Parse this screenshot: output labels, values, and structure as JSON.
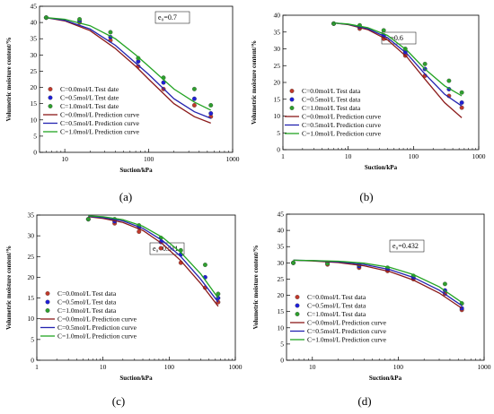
{
  "colors": {
    "c0": "#c0392b",
    "c05": "#1f1fd6",
    "c1": "#2e9e2e",
    "c0_line": "#8b1a1a",
    "c05_line": "#2323b0",
    "c1_line": "#23a323"
  },
  "chart_data": [
    {
      "type": "scatter",
      "panel_label": "(a)",
      "annotation": "e₀=0.7",
      "xlabel": "Suction/kPa",
      "ylabel": "Volumetric moisture content/%",
      "xscale": "log",
      "xlim": [
        5,
        1000
      ],
      "ylim": [
        0,
        45
      ],
      "x_ticks": [
        "10",
        "100",
        "1000"
      ],
      "y_ticks": [
        "0",
        "5",
        "10",
        "15",
        "20",
        "25",
        "30",
        "35",
        "40",
        "45"
      ],
      "legend_position": "left",
      "series": [
        {
          "name": "C=0.0mol/L Test date",
          "kind": "points",
          "x": [
            6,
            15,
            35,
            75,
            150,
            350,
            550
          ],
          "y": [
            41.5,
            40,
            34.5,
            26.5,
            19.5,
            14.5,
            11
          ]
        },
        {
          "name": "C=0.5mol/L Test date",
          "kind": "points",
          "x": [
            6,
            15,
            35,
            75,
            150,
            350,
            550
          ],
          "y": [
            41.5,
            40.5,
            35.5,
            28,
            21.5,
            16.5,
            12
          ]
        },
        {
          "name": "C=1.0mol/L Test date",
          "kind": "points",
          "x": [
            6,
            15,
            35,
            75,
            150,
            350,
            550
          ],
          "y": [
            41.5,
            41,
            37,
            29,
            23,
            19.5,
            14.5
          ]
        },
        {
          "name": "C=0.0mol/L Prediction curve",
          "kind": "line",
          "x": [
            6,
            10,
            20,
            40,
            70,
            100,
            200,
            350,
            550
          ],
          "y": [
            41.5,
            40.5,
            37.5,
            32,
            26.5,
            22.5,
            15,
            11,
            9
          ]
        },
        {
          "name": "C=0.5mol/L Prediction curve",
          "kind": "line",
          "x": [
            6,
            10,
            20,
            40,
            70,
            100,
            200,
            350,
            550
          ],
          "y": [
            41.5,
            40.7,
            38,
            33,
            27.5,
            24,
            16.5,
            12.5,
            10.5
          ]
        },
        {
          "name": "C=1.0mol/L Prediction curve",
          "kind": "line",
          "x": [
            6,
            10,
            20,
            40,
            70,
            100,
            200,
            350,
            550
          ],
          "y": [
            41.5,
            41,
            39,
            35,
            30,
            26.5,
            19.5,
            15.5,
            13
          ]
        }
      ]
    },
    {
      "type": "scatter",
      "panel_label": "(b)",
      "annotation": "e₀=0.6",
      "xlabel": "Suction/kPa",
      "ylabel": "Volumetric moisture content/%",
      "xscale": "log",
      "xlim": [
        1,
        1000
      ],
      "ylim": [
        0,
        40
      ],
      "x_ticks": [
        "1",
        "10",
        "100",
        "1000"
      ],
      "y_ticks": [
        "0",
        "5",
        "10",
        "15",
        "20",
        "25",
        "30",
        "35",
        "40"
      ],
      "legend_position": "bottom-left",
      "series": [
        {
          "name": "C=0.0mol/L Test data",
          "kind": "points",
          "x": [
            6,
            15,
            35,
            75,
            150,
            350,
            550
          ],
          "y": [
            37.5,
            36,
            33,
            28,
            22,
            16,
            12.5
          ]
        },
        {
          "name": "C=0.5mol/L Test data",
          "kind": "points",
          "x": [
            6,
            15,
            35,
            75,
            150,
            350,
            550
          ],
          "y": [
            37.5,
            36.5,
            34,
            29,
            24,
            18,
            14
          ]
        },
        {
          "name": "C=1.0mol/L Test data",
          "kind": "points",
          "x": [
            6,
            15,
            35,
            75,
            150,
            350,
            550
          ],
          "y": [
            37.5,
            37,
            35.5,
            30,
            25.5,
            20.5,
            17
          ]
        },
        {
          "name": "C=0.0mol/L Prediction curve",
          "kind": "line",
          "x": [
            6,
            10,
            20,
            40,
            80,
            150,
            300,
            550
          ],
          "y": [
            37.7,
            37.2,
            35.7,
            32.7,
            27.5,
            21,
            14,
            9.5
          ]
        },
        {
          "name": "C=0.5mol/L Prediction curve",
          "kind": "line",
          "x": [
            6,
            10,
            20,
            40,
            80,
            150,
            300,
            550
          ],
          "y": [
            37.7,
            37.3,
            36,
            33.3,
            28.5,
            22.5,
            16.5,
            13
          ]
        },
        {
          "name": "C=1.0mol/L Prediction curve",
          "kind": "line",
          "x": [
            6,
            10,
            20,
            40,
            80,
            150,
            300,
            550
          ],
          "y": [
            37.7,
            37.4,
            36.3,
            34,
            29.5,
            24,
            19,
            16
          ]
        }
      ]
    },
    {
      "type": "scatter",
      "panel_label": "(c)",
      "annotation": "e₀=0.511",
      "xlabel": "Suction/kPa",
      "ylabel": "Volumetric moisture content/%",
      "xscale": "log",
      "xlim": [
        1,
        1000
      ],
      "ylim": [
        0,
        35
      ],
      "x_ticks": [
        "1",
        "10",
        "100",
        "1000"
      ],
      "y_ticks": [
        "0",
        "5",
        "10",
        "15",
        "20",
        "25",
        "30",
        "35"
      ],
      "legend_position": "bottom-left",
      "series": [
        {
          "name": "C=0.0mol/L Test data",
          "kind": "points",
          "x": [
            6,
            15,
            35,
            75,
            150,
            350,
            550
          ],
          "y": [
            34,
            33,
            31,
            27,
            23.5,
            17.5,
            14
          ]
        },
        {
          "name": "C=0.5mol/L Test data",
          "kind": "points",
          "x": [
            6,
            15,
            35,
            75,
            150,
            350,
            550
          ],
          "y": [
            34,
            33.5,
            32,
            28.5,
            25.5,
            20,
            15
          ]
        },
        {
          "name": "C=1.0mol/L Test data",
          "kind": "points",
          "x": [
            6,
            15,
            35,
            75,
            150,
            350,
            550
          ],
          "y": [
            34,
            34,
            32.5,
            29.5,
            26.5,
            23,
            16
          ]
        },
        {
          "name": "C=0.0mol/L Prediction curve",
          "kind": "line",
          "x": [
            6,
            10,
            20,
            40,
            80,
            150,
            300,
            550
          ],
          "y": [
            34.6,
            34.2,
            33.2,
            31.3,
            28,
            24,
            18.5,
            13
          ]
        },
        {
          "name": "C=0.5mol/L Prediction curve",
          "kind": "line",
          "x": [
            6,
            10,
            20,
            40,
            80,
            150,
            300,
            550
          ],
          "y": [
            34.7,
            34.4,
            33.6,
            31.8,
            28.8,
            25,
            19.5,
            14
          ]
        },
        {
          "name": "C=1.0mol/L Prediction curve",
          "kind": "line",
          "x": [
            6,
            10,
            20,
            40,
            80,
            150,
            300,
            550
          ],
          "y": [
            34.8,
            34.6,
            33.9,
            32.3,
            29.6,
            26,
            20.8,
            15
          ]
        }
      ]
    },
    {
      "type": "scatter",
      "panel_label": "(d)",
      "annotation": "e₀=0.432",
      "xlabel": "Suction/kPa",
      "ylabel": "Volumetric moisture content/%",
      "xscale": "log",
      "xlim": [
        5,
        1000
      ],
      "ylim": [
        0,
        45
      ],
      "x_ticks": [
        "10",
        "100",
        "1000"
      ],
      "y_ticks": [
        "0",
        "5",
        "10",
        "15",
        "20",
        "25",
        "30",
        "35",
        "40",
        "45"
      ],
      "legend_position": "bottom-left",
      "series": [
        {
          "name": "C=0.0mol/L Test data",
          "kind": "points",
          "x": [
            6,
            15,
            35,
            75,
            150,
            350,
            550
          ],
          "y": [
            30,
            29.5,
            28.5,
            27.5,
            25,
            20.5,
            15.5
          ]
        },
        {
          "name": "C=0.5mol/L Test data",
          "kind": "points",
          "x": [
            6,
            15,
            35,
            75,
            150,
            350,
            550
          ],
          "y": [
            30,
            30,
            29,
            28,
            25.5,
            21.5,
            16
          ]
        },
        {
          "name": "C=1.0mol/L Test data",
          "kind": "points",
          "x": [
            6,
            15,
            35,
            75,
            150,
            350,
            550
          ],
          "y": [
            30,
            29.8,
            29.5,
            28.5,
            26,
            23.5,
            17.5
          ]
        },
        {
          "name": "C=0.0mol/L Prediction curve",
          "kind": "line",
          "x": [
            6,
            10,
            20,
            40,
            80,
            150,
            300,
            550
          ],
          "y": [
            30.8,
            30.6,
            30.1,
            29.1,
            27.3,
            24.7,
            20.7,
            16
          ]
        },
        {
          "name": "C=0.5mol/L Prediction curve",
          "kind": "line",
          "x": [
            6,
            10,
            20,
            40,
            80,
            150,
            300,
            550
          ],
          "y": [
            30.8,
            30.7,
            30.3,
            29.5,
            27.9,
            25.5,
            21.6,
            16.8
          ]
        },
        {
          "name": "C=1.0mol/L Prediction curve",
          "kind": "line",
          "x": [
            6,
            10,
            20,
            40,
            80,
            150,
            300,
            550
          ],
          "y": [
            30.8,
            30.7,
            30.5,
            29.9,
            28.6,
            26.4,
            22.6,
            17.8
          ]
        }
      ]
    }
  ]
}
